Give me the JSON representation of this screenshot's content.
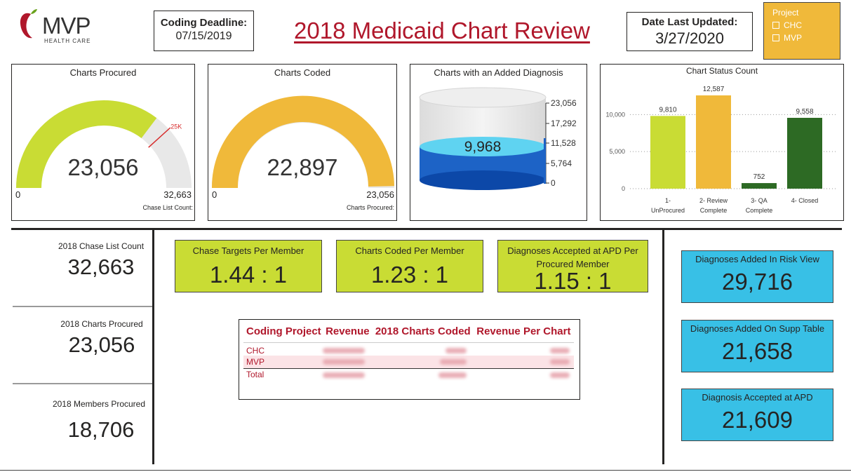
{
  "logo": {
    "brand": "MVP",
    "sub": "HEALTH CARE"
  },
  "coding_deadline": {
    "label": "Coding Deadline:",
    "value": "07/15/2019"
  },
  "page_title": "2018 Medicaid Chart Review",
  "date_updated": {
    "label": "Date Last Updated:",
    "value": "3/27/2020"
  },
  "project_filter": {
    "title": "Project",
    "options": [
      "CHC",
      "MVP"
    ]
  },
  "gauges": {
    "charts_procured": {
      "title": "Charts Procured",
      "value": 23056,
      "value_text": "23,056",
      "min": "0",
      "max": 32663,
      "max_text": "32,663",
      "sublabel": "Chase List Count:",
      "target_label": "25K",
      "target": 25000
    },
    "charts_coded": {
      "title": "Charts Coded",
      "value": 22897,
      "value_text": "22,897",
      "min": "0",
      "max": 23056,
      "max_text": "23,056",
      "sublabel": "Charts Procured:"
    }
  },
  "cylinder": {
    "title": "Charts with an Added Diagnosis",
    "value_text": "9,968",
    "value": 9968,
    "scale": [
      "23,056",
      "17,292",
      "11,528",
      "5,764",
      "0"
    ]
  },
  "chart_data": {
    "type": "bar",
    "title": "Chart Status Count",
    "categories": [
      "1- UnProcured",
      "2- Review Complete",
      "3- QA Complete",
      "4- Closed"
    ],
    "category_lines": [
      [
        "1-",
        "UnProcured"
      ],
      [
        "2- Review",
        "Complete"
      ],
      [
        "3- QA",
        "Complete"
      ],
      [
        "4- Closed",
        ""
      ]
    ],
    "values": [
      9810,
      12587,
      752,
      9558
    ],
    "value_labels": [
      "9,810",
      "12,587",
      "752",
      "9,558"
    ],
    "colors": [
      "#c9dc34",
      "#f0b93a",
      "#2d6a24",
      "#2d6a24"
    ],
    "yticks": [
      "0",
      "5,000",
      "10,000"
    ],
    "ylim": [
      0,
      12587
    ]
  },
  "left_stats": [
    {
      "label": "2018 Chase List Count",
      "value": "32,663"
    },
    {
      "label": "2018 Charts Procured",
      "value": "23,056"
    },
    {
      "label": "2018 Members Procured",
      "value": "18,706"
    }
  ],
  "ratios": [
    {
      "label": "Chase Targets Per Member",
      "value": "1.44 : 1"
    },
    {
      "label": "Charts Coded Per Member",
      "value": "1.23 : 1"
    },
    {
      "label": "Diagnoses Accepted at APD Per Procured Member",
      "value": "1.15 : 1"
    }
  ],
  "right_kpis": [
    {
      "label": "Diagnoses Added In Risk View",
      "value": "29,716"
    },
    {
      "label": "Diagnoses Added On Supp Table",
      "value": "21,658"
    },
    {
      "label": "Diagnosis Accepted at APD",
      "value": "21,609"
    }
  ],
  "revenue_table": {
    "headers": [
      "Coding Project",
      "Revenue",
      "2018 Charts Coded",
      "Revenue Per Chart"
    ],
    "rows": [
      "CHC",
      "MVP",
      "Total"
    ]
  },
  "colors": {
    "title_red": "#b0172b",
    "lime": "#c9dc34",
    "amber": "#f0b93a",
    "cyan": "#38c0e6",
    "dark_green": "#2d6a24"
  }
}
